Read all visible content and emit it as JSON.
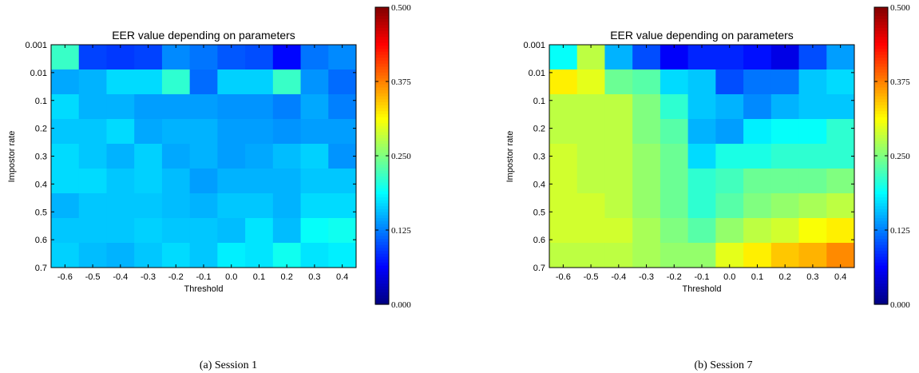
{
  "chart_data": [
    {
      "type": "heatmap",
      "title": "EER value depending on parameters",
      "xlabel": "Threshold",
      "ylabel": "Impostor rate",
      "caption": "(a)  Session 1",
      "x_tick_labels": [
        "-0.6",
        "-0.5",
        "-0.4",
        "-0.3",
        "-0.2",
        "-0.1",
        "0.0",
        "0.1",
        "0.2",
        "0.3",
        "0.4"
      ],
      "y_tick_labels": [
        "0.001",
        "0.01",
        "0.1",
        "0.2",
        "0.3",
        "0.4",
        "0.5",
        "0.6",
        "0.7"
      ],
      "colorbar": {
        "range": [
          0.0,
          0.5
        ],
        "colormap": "jet",
        "tick_labels": [
          "0.000",
          "0.125",
          "0.250",
          "0.375",
          "0.500"
        ]
      },
      "values": [
        [
          0.215,
          0.095,
          0.09,
          0.095,
          0.13,
          0.12,
          0.105,
          0.1,
          0.065,
          0.12,
          0.13
        ],
        [
          0.145,
          0.15,
          0.17,
          0.17,
          0.21,
          0.115,
          0.165,
          0.165,
          0.215,
          0.135,
          0.115
        ],
        [
          0.17,
          0.15,
          0.15,
          0.14,
          0.14,
          0.14,
          0.135,
          0.135,
          0.125,
          0.145,
          0.125
        ],
        [
          0.16,
          0.16,
          0.17,
          0.145,
          0.15,
          0.15,
          0.14,
          0.14,
          0.135,
          0.14,
          0.14
        ],
        [
          0.17,
          0.16,
          0.15,
          0.165,
          0.145,
          0.15,
          0.14,
          0.145,
          0.155,
          0.165,
          0.135
        ],
        [
          0.17,
          0.17,
          0.16,
          0.165,
          0.155,
          0.14,
          0.15,
          0.15,
          0.15,
          0.16,
          0.16
        ],
        [
          0.15,
          0.16,
          0.16,
          0.16,
          0.155,
          0.15,
          0.16,
          0.16,
          0.15,
          0.17,
          0.17
        ],
        [
          0.16,
          0.16,
          0.16,
          0.165,
          0.16,
          0.16,
          0.155,
          0.175,
          0.155,
          0.19,
          0.195
        ],
        [
          0.165,
          0.155,
          0.15,
          0.16,
          0.17,
          0.16,
          0.18,
          0.175,
          0.195,
          0.175,
          0.18
        ]
      ]
    },
    {
      "type": "heatmap",
      "title": "EER value depending on parameters",
      "xlabel": "Threshold",
      "ylabel": "Impostor rate",
      "caption": "(b)  Session 7",
      "x_tick_labels": [
        "-0.6",
        "-0.5",
        "-0.4",
        "-0.3",
        "-0.2",
        "-0.1",
        "0.0",
        "0.1",
        "0.2",
        "0.3",
        "0.4"
      ],
      "y_tick_labels": [
        "0.001",
        "0.01",
        "0.1",
        "0.2",
        "0.3",
        "0.4",
        "0.5",
        "0.6",
        "0.7"
      ],
      "colorbar": {
        "range": [
          0.0,
          0.5
        ],
        "colormap": "jet",
        "tick_labels": [
          "0.000",
          "0.125",
          "0.250",
          "0.375",
          "0.500"
        ]
      },
      "values": [
        [
          0.19,
          0.28,
          0.15,
          0.1,
          0.06,
          0.08,
          0.08,
          0.07,
          0.05,
          0.1,
          0.14
        ],
        [
          0.32,
          0.3,
          0.24,
          0.23,
          0.17,
          0.16,
          0.1,
          0.12,
          0.12,
          0.16,
          0.17
        ],
        [
          0.28,
          0.28,
          0.28,
          0.25,
          0.21,
          0.16,
          0.15,
          0.13,
          0.15,
          0.16,
          0.16
        ],
        [
          0.28,
          0.28,
          0.28,
          0.25,
          0.23,
          0.15,
          0.14,
          0.18,
          0.19,
          0.19,
          0.21
        ],
        [
          0.29,
          0.28,
          0.28,
          0.26,
          0.24,
          0.17,
          0.2,
          0.2,
          0.21,
          0.21,
          0.21
        ],
        [
          0.29,
          0.28,
          0.28,
          0.26,
          0.24,
          0.21,
          0.22,
          0.24,
          0.24,
          0.24,
          0.25
        ],
        [
          0.29,
          0.29,
          0.28,
          0.26,
          0.24,
          0.21,
          0.23,
          0.25,
          0.26,
          0.27,
          0.28
        ],
        [
          0.29,
          0.29,
          0.29,
          0.27,
          0.25,
          0.23,
          0.26,
          0.28,
          0.29,
          0.31,
          0.32
        ],
        [
          0.28,
          0.28,
          0.28,
          0.27,
          0.26,
          0.26,
          0.3,
          0.32,
          0.34,
          0.35,
          0.37
        ]
      ]
    }
  ]
}
